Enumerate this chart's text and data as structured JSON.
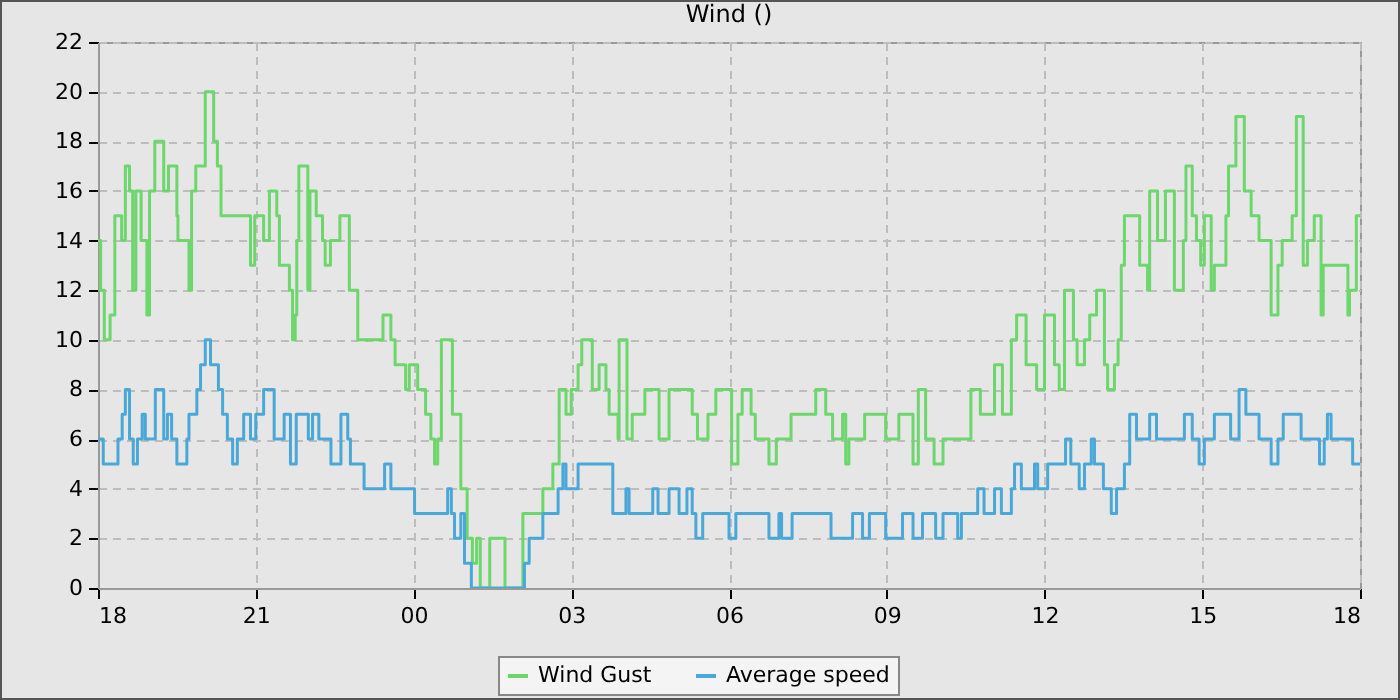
{
  "chart_data": {
    "type": "step",
    "title": "Wind ()",
    "xlim": [
      18,
      42
    ],
    "xticks": [
      {
        "value": 18,
        "label": "18"
      },
      {
        "value": 21,
        "label": "21"
      },
      {
        "value": 24,
        "label": "00"
      },
      {
        "value": 27,
        "label": "03"
      },
      {
        "value": 30,
        "label": "06"
      },
      {
        "value": 33,
        "label": "09"
      },
      {
        "value": 36,
        "label": "12"
      },
      {
        "value": 39,
        "label": "15"
      },
      {
        "value": 42,
        "label": "18"
      }
    ],
    "ylim": [
      0,
      22
    ],
    "yticks": [
      0,
      2,
      4,
      6,
      8,
      10,
      12,
      14,
      16,
      18,
      20,
      22
    ],
    "grid": true,
    "legend": "bottom",
    "series": [
      {
        "name": "Wind Gust",
        "color": "#6dd66d",
        "x": [
          18,
          18.05,
          18.12,
          18.23,
          18.32,
          18.45,
          18.52,
          18.6,
          18.66,
          18.72,
          18.82,
          18.93,
          18.98,
          19.08,
          19.25,
          19.34,
          19.5,
          19.52,
          19.73,
          19.78,
          19.86,
          20.04,
          20.2,
          20.27,
          20.34,
          20.9,
          20.98,
          21.15,
          21.26,
          21.4,
          21.45,
          21.64,
          21.7,
          21.75,
          21.78,
          21.82,
          21.99,
          22.03,
          22.15,
          22.27,
          22.32,
          22.42,
          22.6,
          22.78,
          22.94,
          23.42,
          23.57,
          23.65,
          23.85,
          23.92,
          24.08,
          24.23,
          24.33,
          24.4,
          24.46,
          24.53,
          24.74,
          24.9,
          25.02,
          25.12,
          25.2,
          25.27,
          25.45,
          25.6,
          25.74,
          26.08,
          26.46,
          26.65,
          26.77,
          26.9,
          27.0,
          27.13,
          27.2,
          27.4,
          27.53,
          27.66,
          27.72,
          27.89,
          27.91,
          28.06,
          28.16,
          28.4,
          28.67,
          28.86,
          29.3,
          29.4,
          29.6,
          29.75,
          30.05,
          30.17,
          30.25,
          30.42,
          30.5,
          30.76,
          30.9,
          31.18,
          31.65,
          31.84,
          31.97,
          32.16,
          32.22,
          32.28,
          32.58,
          32.98,
          33.23,
          33.5,
          33.6,
          33.74,
          33.9,
          34.07,
          34.6,
          34.78,
          35.05,
          35.2,
          35.37,
          35.47,
          35.65,
          35.85,
          36.0,
          36.19,
          36.28,
          36.38,
          36.55,
          36.62,
          36.76,
          36.86,
          36.99,
          37.14,
          37.2,
          37.33,
          37.4,
          37.46,
          37.52,
          37.81,
          37.96,
          38.0,
          38.15,
          38.3,
          38.47,
          38.64,
          38.69,
          38.81,
          38.89,
          38.97,
          39.04,
          39.17,
          39.23,
          39.45,
          39.5,
          39.64,
          39.8,
          39.93,
          40.08,
          40.31,
          40.44,
          40.52,
          40.71,
          40.79,
          40.92,
          41.0,
          41.13,
          41.26,
          41.3,
          41.77,
          41.8,
          41.93,
          42
        ],
        "values": [
          14,
          12,
          10,
          11,
          15,
          14,
          17,
          16,
          12,
          16,
          14,
          11,
          16,
          18,
          16,
          17,
          15,
          14,
          12,
          16,
          17,
          20,
          18,
          17,
          15,
          13,
          15,
          14,
          16,
          15,
          13,
          12,
          10,
          11,
          14,
          17,
          12,
          16,
          15,
          14,
          13,
          14,
          15,
          12,
          10,
          11,
          10,
          9,
          8,
          9,
          8,
          7,
          6,
          5,
          6,
          10,
          7,
          4,
          2,
          1,
          2,
          0,
          2,
          2,
          0,
          3,
          4,
          5,
          8,
          7,
          8,
          9,
          10,
          8,
          9,
          8,
          7,
          6,
          10,
          6,
          7,
          8,
          6,
          8,
          7,
          6,
          7,
          8,
          5,
          7,
          8,
          7,
          6,
          5,
          6,
          7,
          8,
          7,
          6,
          7,
          5,
          6,
          7,
          6,
          7,
          5,
          8,
          6,
          5,
          6,
          8,
          7,
          9,
          7,
          10,
          11,
          9,
          8,
          11,
          9,
          8,
          12,
          10,
          9,
          10,
          11,
          12,
          9,
          8,
          9,
          10,
          13,
          15,
          13,
          12,
          16,
          14,
          16,
          12,
          14,
          17,
          15,
          14,
          13,
          15,
          12,
          13,
          15,
          17,
          19,
          16,
          15,
          14,
          11,
          13,
          14,
          15,
          19,
          13,
          14,
          15,
          11,
          13,
          11,
          12,
          15,
          15
        ]
      },
      {
        "name": "Average speed",
        "color": "#4aa8d8",
        "x": [
          18,
          18.1,
          18.38,
          18.46,
          18.52,
          18.6,
          18.67,
          18.75,
          18.84,
          18.9,
          18.96,
          19.09,
          19.25,
          19.32,
          19.4,
          19.5,
          19.69,
          19.73,
          19.88,
          19.95,
          20.04,
          20.14,
          20.29,
          20.37,
          20.46,
          20.56,
          20.65,
          20.77,
          20.9,
          21.0,
          21.15,
          21.35,
          21.54,
          21.66,
          21.77,
          22.0,
          22.08,
          22.2,
          22.43,
          22.62,
          22.75,
          22.8,
          23.06,
          23.45,
          23.57,
          24.02,
          24.65,
          24.72,
          24.78,
          24.9,
          24.97,
          25.1,
          26.11,
          26.2,
          26.46,
          26.75,
          26.84,
          26.9,
          27.13,
          27.79,
          28.04,
          28.1,
          28.55,
          28.65,
          28.86,
          29.05,
          29.2,
          29.3,
          29.37,
          29.5,
          30.0,
          30.13,
          30.76,
          30.95,
          31.0,
          31.2,
          31.94,
          32.35,
          32.54,
          32.67,
          32.98,
          33.3,
          33.5,
          33.68,
          33.93,
          34.07,
          34.35,
          34.42,
          34.73,
          34.85,
          35.05,
          35.18,
          35.37,
          35.43,
          35.56,
          35.81,
          35.87,
          36.06,
          36.4,
          36.5,
          36.66,
          36.76,
          36.89,
          36.95,
          37.12,
          37.27,
          37.37,
          37.52,
          37.62,
          37.75,
          38.0,
          38.13,
          38.66,
          38.81,
          38.94,
          39.04,
          39.23,
          39.54,
          39.7,
          39.83,
          40.08,
          40.31,
          40.44,
          40.54,
          40.88,
          41.23,
          41.32,
          41.38,
          41.45,
          41.86,
          42
        ],
        "values": [
          6,
          5,
          6,
          7,
          8,
          6,
          5,
          6,
          7,
          6,
          6,
          8,
          6,
          7,
          6,
          5,
          6,
          7,
          8,
          9,
          10,
          9,
          8,
          7,
          6,
          5,
          6,
          7,
          6,
          7,
          8,
          6,
          7,
          5,
          7,
          6,
          7,
          6,
          5,
          7,
          6,
          5,
          4,
          5,
          4,
          3,
          4,
          3,
          2,
          3,
          1,
          0,
          1,
          2,
          3,
          4,
          5,
          4,
          5,
          3,
          4,
          3,
          4,
          3,
          4,
          3,
          4,
          3,
          2,
          3,
          2,
          3,
          2,
          3,
          2,
          3,
          2,
          3,
          2,
          3,
          2,
          3,
          2,
          3,
          2,
          3,
          2,
          3,
          4,
          3,
          4,
          3,
          4,
          5,
          4,
          5,
          4,
          5,
          6,
          5,
          4,
          5,
          6,
          5,
          4,
          3,
          4,
          5,
          7,
          6,
          7,
          6,
          7,
          6,
          5,
          6,
          7,
          6,
          8,
          7,
          6,
          5,
          6,
          7,
          6,
          5,
          6,
          7,
          6,
          5,
          5
        ]
      }
    ]
  }
}
